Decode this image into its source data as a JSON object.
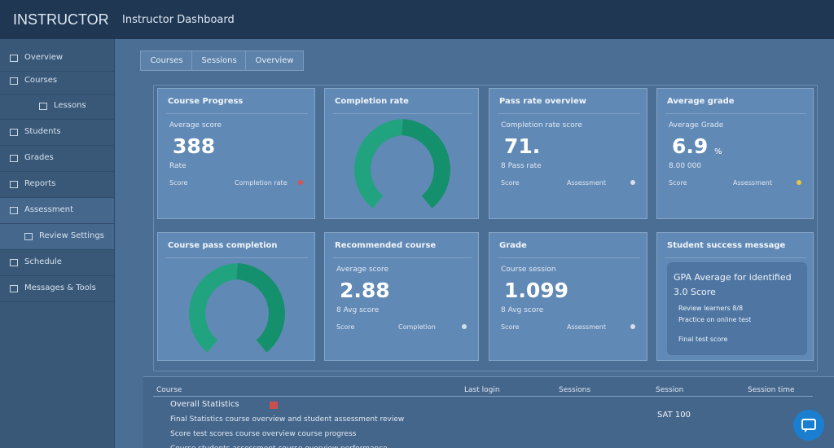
{
  "header": {
    "brand": "INSTRUCTOR",
    "title": "Instructor Dashboard"
  },
  "sidebar": [
    "Overview",
    "Courses",
    "Lessons",
    "Students",
    "Grades",
    "Reports",
    "Assessment",
    "Review Settings",
    "Schedule",
    "Messages & Tools"
  ],
  "tabs": [
    "Courses",
    "Sessions",
    "Overview"
  ],
  "cards": [
    {
      "title": "Course Progress",
      "label": "Average score",
      "value": "388",
      "sub": "Rate",
      "foot_left": "Score",
      "foot_right": "Completion rate"
    },
    {
      "title": "Completion rate"
    },
    {
      "title": "Pass rate overview",
      "label": "Completion rate score",
      "value": "71.",
      "sub": "8 Pass rate",
      "foot_left": "Score",
      "foot_right": "Assessment"
    },
    {
      "title": "Average grade",
      "label": "Average Grade",
      "value": "6.9",
      "unit": "%",
      "sub": "8.00 000",
      "foot_left": "Score",
      "foot_right": "Assessment"
    },
    {
      "title": "Course pass completion"
    },
    {
      "title": "Recommended course",
      "label": "Average score",
      "value": "2.88",
      "sub": "8 Avg score",
      "foot_left": "Score",
      "foot_right": "Completion"
    },
    {
      "title": "Grade",
      "label": "Course session",
      "value": "1.099",
      "sub": "8 Avg score",
      "foot_left": "Score",
      "foot_right": "Assessment"
    },
    {
      "title": "Student success message",
      "lines": [
        "GPA Average for identified",
        "3.0 Score",
        "Review learners 8/8",
        "Practice on online test",
        "Final test score"
      ]
    }
  ],
  "table": {
    "headers": [
      "Course",
      "Last login",
      "Sessions",
      "Session",
      "Session time"
    ],
    "title": "Overall Statistics",
    "total": "SAT 100",
    "rows": [
      "Final Statistics course overview and student assessment review",
      "Score test scores course overview course progress",
      "Course students assessment course overview performance"
    ]
  }
}
